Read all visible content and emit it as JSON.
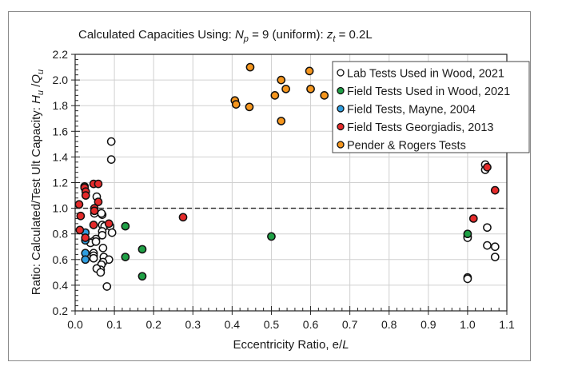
{
  "chart_data": {
    "type": "scatter",
    "title": {
      "prefix": "Calculated Capacities Using: ",
      "np_symbol": "N",
      "np_sub": "p",
      "np_value": " = 9 (uniform): ",
      "zt_symbol": "z",
      "zt_sub": "t",
      "zt_value": " = 0.2L"
    },
    "xlabel": {
      "text": "Eccentricity Ratio, e/",
      "italic": "L"
    },
    "ylabel": {
      "text": "Ratio: Calculated/Test Ult Capacity: ",
      "h": "H",
      "h_sub": "u",
      "slash": " /",
      "q": "Q",
      "q_sub": "u"
    },
    "xlim": [
      0.0,
      1.1
    ],
    "ylim": [
      0.2,
      2.2
    ],
    "x_ticks": [
      "0.0",
      "0.1",
      "0.2",
      "0.3",
      "0.4",
      "0.5",
      "0.6",
      "0.7",
      "0.8",
      "0.9",
      "1.0",
      "1.1"
    ],
    "y_ticks": [
      "0.2",
      "0.4",
      "0.6",
      "0.8",
      "1.0",
      "1.2",
      "1.4",
      "1.6",
      "1.8",
      "2.0",
      "2.2"
    ],
    "grid": true,
    "reference_line": {
      "y": 1.0,
      "style": "dashed"
    },
    "legend_position": "top-right",
    "series": [
      {
        "name": "Lab Tests Used in Wood, 2021",
        "fill": "#ffffff",
        "points": [
          [
            0.092,
            1.52
          ],
          [
            0.092,
            1.38
          ],
          [
            0.055,
            1.09
          ],
          [
            0.069,
            0.95
          ],
          [
            0.049,
            0.96
          ],
          [
            0.067,
            0.96
          ],
          [
            0.069,
            0.87
          ],
          [
            0.075,
            0.86
          ],
          [
            0.089,
            0.86
          ],
          [
            0.069,
            0.82
          ],
          [
            0.094,
            0.81
          ],
          [
            0.053,
            0.76
          ],
          [
            0.069,
            0.79
          ],
          [
            0.045,
            0.74
          ],
          [
            0.039,
            0.73
          ],
          [
            0.053,
            0.74
          ],
          [
            0.071,
            0.69
          ],
          [
            0.047,
            0.65
          ],
          [
            0.047,
            0.63
          ],
          [
            0.047,
            0.61
          ],
          [
            0.073,
            0.62
          ],
          [
            0.086,
            0.6
          ],
          [
            0.071,
            0.58
          ],
          [
            0.067,
            0.56
          ],
          [
            0.065,
            0.52
          ],
          [
            0.055,
            0.53
          ],
          [
            0.065,
            0.5
          ],
          [
            0.081,
            0.39
          ],
          [
            1.045,
            1.34
          ],
          [
            1.045,
            1.3
          ],
          [
            1.05,
            0.85
          ],
          [
            1.0,
            0.78
          ],
          [
            1.0,
            0.77
          ],
          [
            1.05,
            0.71
          ],
          [
            1.07,
            0.7
          ],
          [
            1.07,
            0.62
          ],
          [
            1.0,
            0.46
          ],
          [
            1.0,
            0.45
          ]
        ]
      },
      {
        "name": "Field Tests Used in Wood, 2021",
        "fill": "#1fa045",
        "points": [
          [
            0.024,
            1.17
          ],
          [
            0.128,
            0.86
          ],
          [
            0.128,
            0.62
          ],
          [
            0.171,
            0.68
          ],
          [
            0.171,
            0.47
          ],
          [
            0.5,
            0.78
          ],
          [
            1.0,
            0.8
          ]
        ]
      },
      {
        "name": "Field Tests, Mayne, 2004",
        "fill": "#2f9ee0",
        "points": [
          [
            0.026,
            0.81
          ],
          [
            0.026,
            0.75
          ],
          [
            0.026,
            0.65
          ],
          [
            0.026,
            0.6
          ]
        ]
      },
      {
        "name": "Field Tests Georgiadis, 2013",
        "fill": "#e52b2b",
        "points": [
          [
            0.024,
            1.16
          ],
          [
            0.047,
            1.19
          ],
          [
            0.059,
            1.19
          ],
          [
            0.027,
            1.13
          ],
          [
            0.027,
            1.1
          ],
          [
            0.059,
            1.05
          ],
          [
            0.01,
            1.03
          ],
          [
            0.049,
            1.0
          ],
          [
            0.049,
            0.98
          ],
          [
            0.014,
            0.94
          ],
          [
            0.086,
            0.88
          ],
          [
            0.047,
            0.87
          ],
          [
            0.012,
            0.83
          ],
          [
            0.026,
            0.77
          ],
          [
            0.275,
            0.93
          ],
          [
            1.05,
            1.32
          ],
          [
            1.07,
            1.14
          ],
          [
            1.015,
            0.92
          ]
        ]
      },
      {
        "name": "Pender & Rogers Tests",
        "fill": "#f5961e",
        "points": [
          [
            0.446,
            2.1
          ],
          [
            0.407,
            1.84
          ],
          [
            0.41,
            1.81
          ],
          [
            0.444,
            1.79
          ],
          [
            0.525,
            2.0
          ],
          [
            0.537,
            1.93
          ],
          [
            0.509,
            1.88
          ],
          [
            0.525,
            1.68
          ],
          [
            0.597,
            2.07
          ],
          [
            0.6,
            1.93
          ],
          [
            0.635,
            1.88
          ]
        ]
      }
    ]
  }
}
